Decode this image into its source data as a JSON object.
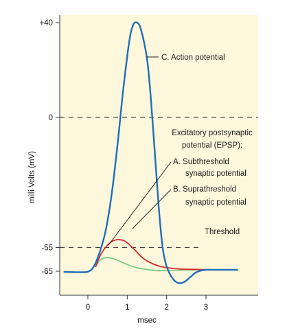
{
  "chart_data": {
    "type": "line",
    "title": "",
    "xlabel": "msec",
    "ylabel": "milli Volts (mV)",
    "xlim": [
      -0.7,
      4.5
    ],
    "ylim": [
      -70,
      42
    ],
    "x_ticks": [
      0,
      1,
      2,
      3
    ],
    "x_tick_labels": [
      "0",
      "1",
      "2",
      "3"
    ],
    "y_ticks": [
      40,
      0,
      -55,
      -65
    ],
    "y_tick_labels": [
      "+40",
      "0",
      "-55",
      "-65"
    ],
    "grid": false,
    "colors": {
      "background": "#fdf7dc",
      "action_potential": "#1e6fba",
      "suprathreshold": "#d8272e",
      "subthreshold": "#7ec881",
      "reference_lines": "#444444"
    },
    "reference_lines": [
      {
        "y": 0,
        "style": "dashed"
      },
      {
        "y": -55,
        "style": "dashed",
        "label": "Threshold"
      }
    ],
    "series": [
      {
        "name": "C. Action potential",
        "color": "#1e6fba",
        "x": [
          -0.6,
          -0.3,
          0.0,
          0.15,
          0.3,
          0.45,
          0.6,
          0.75,
          0.9,
          1.05,
          1.15,
          1.25,
          1.35,
          1.5,
          1.6,
          1.7,
          1.8,
          1.9,
          2.0,
          2.15,
          2.3,
          2.45,
          2.6,
          2.75,
          2.95,
          3.2,
          3.5,
          3.8
        ],
        "y": [
          -65.3,
          -65.4,
          -65.2,
          -63,
          -57,
          -48,
          -33,
          -12,
          12,
          32,
          39,
          40,
          37,
          25,
          8,
          -15,
          -38,
          -55,
          -63,
          -68,
          -70,
          -69.5,
          -67.5,
          -65.5,
          -64.5,
          -64.4,
          -64.4,
          -64.4
        ]
      },
      {
        "name": "B. Suprathreshold synaptic potential",
        "color": "#d8272e",
        "x": [
          0.2,
          0.3,
          0.4,
          0.5,
          0.6,
          0.7,
          0.8,
          0.9,
          1.0,
          1.1,
          1.25,
          1.4,
          1.6,
          1.8,
          2.0,
          2.3,
          2.6,
          2.9,
          3.2
        ],
        "y": [
          -63,
          -58.8,
          -56,
          -54,
          -52.5,
          -51.8,
          -51.7,
          -52,
          -53,
          -54.5,
          -57,
          -59.5,
          -61.5,
          -62.8,
          -63.5,
          -64,
          -64.2,
          -64.3,
          -64.4
        ]
      },
      {
        "name": "A. Subthreshold synaptic potential",
        "color": "#7ec881",
        "x": [
          0.2,
          0.3,
          0.4,
          0.5,
          0.6,
          0.7,
          0.8,
          0.9,
          1.0,
          1.2,
          1.4,
          1.6,
          1.8,
          2.0,
          2.3,
          2.6,
          2.9,
          3.2
        ],
        "y": [
          -63,
          -60.5,
          -59.5,
          -59.3,
          -59.5,
          -60,
          -60.7,
          -61.5,
          -62.2,
          -63.3,
          -64,
          -64.5,
          -64.8,
          -64.7,
          -64.6,
          -64.5,
          -64.4,
          -64.4
        ]
      }
    ],
    "annotations": {
      "action_potential": "C.  Action potential",
      "epsp_heading_line1": "Excitatory postsynaptic",
      "epsp_heading_line2": "potential (EPSP):",
      "sub_line1": "A.  Subthreshold",
      "sub_line2": "synaptic potential",
      "supra_line1": "B.  Suprathreshold",
      "supra_line2": "synaptic potential",
      "threshold": "Threshold"
    }
  }
}
